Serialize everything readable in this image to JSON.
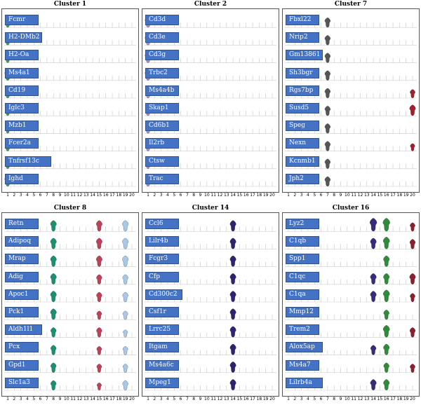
{
  "chart_data": [
    {
      "type": "violin",
      "title": "Cluster 1",
      "x_ticks": [
        "1",
        "2",
        "3",
        "4",
        "5",
        "6",
        "7",
        "8",
        "9",
        "10",
        "11",
        "12",
        "13",
        "14",
        "15",
        "16",
        "17",
        "18",
        "19",
        "20"
      ],
      "color": "#3e9a5b",
      "genes": [
        "Fcmr",
        "H2-DMb2",
        "H2-Oa",
        "Ms4a1",
        "Cd19",
        "Iglc3",
        "Mzb1",
        "Fcer2a",
        "Tnfrsf13c",
        "Ighd"
      ],
      "violins": [
        {
          "gene": "Fcmr",
          "cluster": 1,
          "level": 0.5
        },
        {
          "gene": "H2-DMb2",
          "cluster": 1,
          "level": 0.5
        },
        {
          "gene": "H2-Oa",
          "cluster": 1,
          "level": 0.4
        },
        {
          "gene": "Ms4a1",
          "cluster": 1,
          "level": 0.6
        },
        {
          "gene": "Cd19",
          "cluster": 1,
          "level": 0.5
        },
        {
          "gene": "Iglc3",
          "cluster": 1,
          "level": 0.4
        },
        {
          "gene": "Mzb1",
          "cluster": 1,
          "level": 0.3
        },
        {
          "gene": "Fcer2a",
          "cluster": 1,
          "level": 0.5
        },
        {
          "gene": "Tnfrsf13c",
          "cluster": 1,
          "level": 0.5
        },
        {
          "gene": "Ighd",
          "cluster": 1,
          "level": 0.6
        }
      ]
    },
    {
      "type": "violin",
      "title": "Cluster 2",
      "x_ticks": [
        "1",
        "2",
        "3",
        "4",
        "5",
        "6",
        "7",
        "8",
        "9",
        "10",
        "11",
        "12",
        "13",
        "14",
        "15",
        "16",
        "17",
        "18",
        "19",
        "20"
      ],
      "color": "#9b8fd6",
      "genes": [
        "Cd3d",
        "Cd3e",
        "Cd3g",
        "Trbc2",
        "Ms4a4b",
        "Skap1",
        "Cd6b1",
        "Il2rb",
        "Ctsw",
        "Trac"
      ],
      "violins": [
        {
          "gene": "Cd3d",
          "cluster": 1,
          "level": 0.6
        },
        {
          "gene": "Cd3e",
          "cluster": 1,
          "level": 0.6
        },
        {
          "gene": "Cd3g",
          "cluster": 1,
          "level": 0.6
        },
        {
          "gene": "Trbc2",
          "cluster": 1,
          "level": 0.6
        },
        {
          "gene": "Ms4a4b",
          "cluster": 1,
          "level": 0.5
        },
        {
          "gene": "Skap1",
          "cluster": 1,
          "level": 0.5
        },
        {
          "gene": "Cd6b1",
          "cluster": 1,
          "level": 0.5
        },
        {
          "gene": "Il2rb",
          "cluster": 1,
          "level": 0.5
        },
        {
          "gene": "Ctsw",
          "cluster": 1,
          "level": 0.5
        },
        {
          "gene": "Trac",
          "cluster": 1,
          "level": 0.5
        }
      ]
    },
    {
      "type": "violin",
      "title": "Cluster 7",
      "x_ticks": [
        "1",
        "2",
        "3",
        "4",
        "5",
        "6",
        "7",
        "8",
        "9",
        "10",
        "11",
        "12",
        "13",
        "14",
        "15",
        "16",
        "17",
        "18",
        "19",
        "20"
      ],
      "color": "#555555",
      "genes": [
        "Fbxl22",
        "Nrip2",
        "Gm13861",
        "Sh3bgr",
        "Rgs7bp",
        "Susd5",
        "Speg",
        "Nexn",
        "Kcnmb1",
        "Jph2"
      ],
      "violins": [
        {
          "gene": "Fbxl22",
          "cluster": 7,
          "level": 0.5
        },
        {
          "gene": "Nrip2",
          "cluster": 7,
          "level": 0.5
        },
        {
          "gene": "Gm13861",
          "cluster": 7,
          "level": 0.5
        },
        {
          "gene": "Sh3bgr",
          "cluster": 7,
          "level": 0.5
        },
        {
          "gene": "Rgs7bp",
          "cluster": 7,
          "level": 0.5
        },
        {
          "gene": "Rgs7bp",
          "cluster": 20,
          "level": 0.4,
          "color": "#a02030"
        },
        {
          "gene": "Susd5",
          "cluster": 7,
          "level": 0.5
        },
        {
          "gene": "Susd5",
          "cluster": 20,
          "level": 0.6,
          "color": "#a02030"
        },
        {
          "gene": "Speg",
          "cluster": 7,
          "level": 0.5
        },
        {
          "gene": "Nexn",
          "cluster": 7,
          "level": 0.5
        },
        {
          "gene": "Nexn",
          "cluster": 20,
          "level": 0.3,
          "color": "#a02030"
        },
        {
          "gene": "Kcnmb1",
          "cluster": 7,
          "level": 0.5
        },
        {
          "gene": "Jph2",
          "cluster": 7,
          "level": 0.5
        }
      ]
    },
    {
      "type": "violin",
      "title": "Cluster 8",
      "x_ticks": [
        "1",
        "2",
        "3",
        "4",
        "5",
        "6",
        "7",
        "8",
        "9",
        "10",
        "11",
        "12",
        "13",
        "14",
        "15",
        "16",
        "17",
        "18",
        "19",
        "20"
      ],
      "color": "#1a9070",
      "genes": [
        "Retn",
        "Adipoq",
        "Mrap",
        "Adig",
        "Apoc1",
        "Pck1",
        "Aldh1l1",
        "Pcx",
        "Gpd1",
        "Slc1a3"
      ],
      "violins": [
        {
          "gene": "Retn",
          "cluster": 8,
          "level": 0.6
        },
        {
          "gene": "Retn",
          "cluster": 15,
          "level": 0.6,
          "color": "#c0405a"
        },
        {
          "gene": "Retn",
          "cluster": 19,
          "level": 0.6,
          "color": "#a8c8e8"
        },
        {
          "gene": "Adipoq",
          "cluster": 8,
          "level": 0.6
        },
        {
          "gene": "Adipoq",
          "cluster": 15,
          "level": 0.6,
          "color": "#c0405a"
        },
        {
          "gene": "Adipoq",
          "cluster": 19,
          "level": 0.6,
          "color": "#a8c8e8"
        },
        {
          "gene": "Mrap",
          "cluster": 8,
          "level": 0.6
        },
        {
          "gene": "Mrap",
          "cluster": 15,
          "level": 0.6,
          "color": "#c0405a"
        },
        {
          "gene": "Mrap",
          "cluster": 19,
          "level": 0.6,
          "color": "#a8c8e8"
        },
        {
          "gene": "Adig",
          "cluster": 8,
          "level": 0.6
        },
        {
          "gene": "Adig",
          "cluster": 15,
          "level": 0.5,
          "color": "#c0405a"
        },
        {
          "gene": "Adig",
          "cluster": 19,
          "level": 0.5,
          "color": "#a8c8e8"
        },
        {
          "gene": "Apoc1",
          "cluster": 8,
          "level": 0.6
        },
        {
          "gene": "Apoc1",
          "cluster": 15,
          "level": 0.5,
          "color": "#c0405a"
        },
        {
          "gene": "Apoc1",
          "cluster": 19,
          "level": 0.5,
          "color": "#a8c8e8"
        },
        {
          "gene": "Pck1",
          "cluster": 8,
          "level": 0.6
        },
        {
          "gene": "Pck1",
          "cluster": 15,
          "level": 0.4,
          "color": "#c0405a"
        },
        {
          "gene": "Pck1",
          "cluster": 19,
          "level": 0.4,
          "color": "#a8c8e8"
        },
        {
          "gene": "Aldh1l1",
          "cluster": 8,
          "level": 0.5
        },
        {
          "gene": "Aldh1l1",
          "cluster": 15,
          "level": 0.5,
          "color": "#c0405a"
        },
        {
          "gene": "Aldh1l1",
          "cluster": 19,
          "level": 0.3,
          "color": "#a8c8e8"
        },
        {
          "gene": "Pcx",
          "cluster": 8,
          "level": 0.5
        },
        {
          "gene": "Pcx",
          "cluster": 15,
          "level": 0.4,
          "color": "#c0405a"
        },
        {
          "gene": "Pcx",
          "cluster": 19,
          "level": 0.4,
          "color": "#a8c8e8"
        },
        {
          "gene": "Gpd1",
          "cluster": 8,
          "level": 0.5
        },
        {
          "gene": "Gpd1",
          "cluster": 15,
          "level": 0.4,
          "color": "#c0405a"
        },
        {
          "gene": "Gpd1",
          "cluster": 19,
          "level": 0.4,
          "color": "#a8c8e8"
        },
        {
          "gene": "Slc1a3",
          "cluster": 8,
          "level": 0.5
        },
        {
          "gene": "Slc1a3",
          "cluster": 15,
          "level": 0.3,
          "color": "#c0405a"
        },
        {
          "gene": "Slc1a3",
          "cluster": 19,
          "level": 0.5,
          "color": "#a8c8e8"
        }
      ]
    },
    {
      "type": "violin",
      "title": "Cluster 14",
      "x_ticks": [
        "1",
        "2",
        "3",
        "4",
        "5",
        "6",
        "7",
        "8",
        "9",
        "10",
        "11",
        "12",
        "13",
        "14",
        "15",
        "16",
        "17",
        "18",
        "19",
        "20"
      ],
      "color": "#30226e",
      "genes": [
        "Ccl6",
        "Lilr4b",
        "Fcgr3",
        "Cfp",
        "Cd300c2",
        "Csf1r",
        "Lrrc25",
        "Itgam",
        "Ms4a6c",
        "Mpeg1"
      ],
      "violins": [
        {
          "gene": "Ccl6",
          "cluster": 14,
          "level": 0.6
        },
        {
          "gene": "Lilr4b",
          "cluster": 14,
          "level": 0.6
        },
        {
          "gene": "Fcgr3",
          "cluster": 14,
          "level": 0.6
        },
        {
          "gene": "Cfp",
          "cluster": 14,
          "level": 0.6
        },
        {
          "gene": "Cd300c2",
          "cluster": 14,
          "level": 0.6
        },
        {
          "gene": "Csf1r",
          "cluster": 14,
          "level": 0.6
        },
        {
          "gene": "Lrrc25",
          "cluster": 14,
          "level": 0.6
        },
        {
          "gene": "Itgam",
          "cluster": 14,
          "level": 0.6
        },
        {
          "gene": "Ms4a6c",
          "cluster": 14,
          "level": 0.6
        },
        {
          "gene": "Mpeg1",
          "cluster": 14,
          "level": 0.6
        }
      ]
    },
    {
      "type": "violin",
      "title": "Cluster 16",
      "x_ticks": [
        "1",
        "2",
        "3",
        "4",
        "5",
        "6",
        "7",
        "8",
        "9",
        "10",
        "11",
        "12",
        "13",
        "14",
        "15",
        "16",
        "17",
        "18",
        "19",
        "20"
      ],
      "color": "#2f8a3a",
      "genes": [
        "Lyz2",
        "C1qb",
        "Spp1",
        "C1qc",
        "C1qa",
        "Mmp12",
        "Trem2",
        "Alox5ap",
        "Ms4a7",
        "Lilrb4a"
      ],
      "violins": [
        {
          "gene": "Lyz2",
          "cluster": 14,
          "level": 0.8,
          "color": "#3a2a7a"
        },
        {
          "gene": "Lyz2",
          "cluster": 16,
          "level": 0.8,
          "color": "#2f8a3a"
        },
        {
          "gene": "Lyz2",
          "cluster": 20,
          "level": 0.4,
          "color": "#8a2030"
        },
        {
          "gene": "C1qb",
          "cluster": 14,
          "level": 0.6,
          "color": "#3a2a7a"
        },
        {
          "gene": "C1qb",
          "cluster": 16,
          "level": 0.7,
          "color": "#2f8a3a"
        },
        {
          "gene": "C1qb",
          "cluster": 20,
          "level": 0.5,
          "color": "#8a2030"
        },
        {
          "gene": "Spp1",
          "cluster": 16,
          "level": 0.6,
          "color": "#2f8a3a"
        },
        {
          "gene": "C1qc",
          "cluster": 14,
          "level": 0.6,
          "color": "#3a2a7a"
        },
        {
          "gene": "C1qc",
          "cluster": 16,
          "level": 0.6,
          "color": "#2f8a3a"
        },
        {
          "gene": "C1qc",
          "cluster": 20,
          "level": 0.6,
          "color": "#8a2030"
        },
        {
          "gene": "C1qa",
          "cluster": 14,
          "level": 0.6,
          "color": "#3a2a7a"
        },
        {
          "gene": "C1qa",
          "cluster": 16,
          "level": 0.7,
          "color": "#2f8a3a"
        },
        {
          "gene": "C1qa",
          "cluster": 20,
          "level": 0.4,
          "color": "#8a2030"
        },
        {
          "gene": "Mmp12",
          "cluster": 16,
          "level": 0.5,
          "color": "#2f8a3a"
        },
        {
          "gene": "Trem2",
          "cluster": 16,
          "level": 0.7,
          "color": "#2f8a3a"
        },
        {
          "gene": "Trem2",
          "cluster": 20,
          "level": 0.5,
          "color": "#8a2030"
        },
        {
          "gene": "Alox5ap",
          "cluster": 14,
          "level": 0.5,
          "color": "#3a2a7a"
        },
        {
          "gene": "Alox5ap",
          "cluster": 16,
          "level": 0.6,
          "color": "#2f8a3a"
        },
        {
          "gene": "Ms4a7",
          "cluster": 16,
          "level": 0.5,
          "color": "#2f8a3a"
        },
        {
          "gene": "Ms4a7",
          "cluster": 20,
          "level": 0.4,
          "color": "#8a2030"
        },
        {
          "gene": "Lilrb4a",
          "cluster": 14,
          "level": 0.6,
          "color": "#3a2a7a"
        },
        {
          "gene": "Lilrb4a",
          "cluster": 16,
          "level": 0.6,
          "color": "#2f8a3a"
        }
      ]
    }
  ]
}
